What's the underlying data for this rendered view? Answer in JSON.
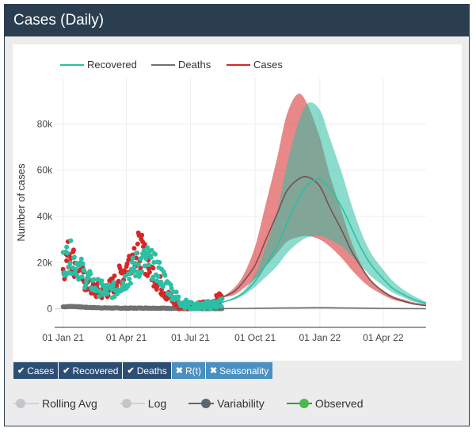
{
  "panel": {
    "title": "Cases (Daily)"
  },
  "colors": {
    "header": "#2b3e50",
    "recovered": "#2bbfa4",
    "deaths": "#707070",
    "cases": "#d62728",
    "button_on": "#2d4e74",
    "button_off": "#4a90c0"
  },
  "toolbar": {
    "buttons": [
      {
        "label": "Cases",
        "active": true,
        "icon": "check-icon"
      },
      {
        "label": "Recovered",
        "active": true,
        "icon": "check-icon"
      },
      {
        "label": "Deaths",
        "active": true,
        "icon": "check-icon"
      },
      {
        "label": "R(t)",
        "active": false,
        "icon": "cross-icon"
      },
      {
        "label": "Seasonality",
        "active": false,
        "icon": "cross-icon"
      }
    ]
  },
  "toggles": [
    {
      "label": "Rolling Avg",
      "on": false
    },
    {
      "label": "Log",
      "on": false
    },
    {
      "label": "Variability",
      "on": true
    },
    {
      "label": "Observed",
      "on": true
    }
  ],
  "chart_data": {
    "type": "line",
    "title": "",
    "xlabel": "",
    "ylabel": "Number of cases",
    "x_range": [
      "2020-12-20",
      "2022-06-01"
    ],
    "ylim": [
      -8000,
      100000
    ],
    "grid": true,
    "legend_position": "top-left",
    "legend": [
      "Recovered",
      "Deaths",
      "Cases"
    ],
    "x_ticks": [
      {
        "date": "2021-01-01",
        "label": "01 Jan 21"
      },
      {
        "date": "2021-04-01",
        "label": "01 Apr 21"
      },
      {
        "date": "2021-07-01",
        "label": "01 Jul 21"
      },
      {
        "date": "2021-10-01",
        "label": "01 Oct 21"
      },
      {
        "date": "2022-01-01",
        "label": "01 Jan 22"
      },
      {
        "date": "2022-04-01",
        "label": "01 Apr 22"
      }
    ],
    "y_ticks": [
      {
        "value": 0,
        "label": "0"
      },
      {
        "value": 20000,
        "label": "20k"
      },
      {
        "value": 40000,
        "label": "40k"
      },
      {
        "value": 60000,
        "label": "60k"
      },
      {
        "value": 80000,
        "label": "80k"
      }
    ],
    "series": [
      {
        "name": "Cases",
        "observed_x": [
          "2021-01-01",
          "2021-01-10",
          "2021-01-20",
          "2021-02-01",
          "2021-02-15",
          "2021-03-01",
          "2021-03-15",
          "2021-04-01",
          "2021-04-10",
          "2021-04-20",
          "2021-05-01",
          "2021-05-15",
          "2021-06-01",
          "2021-06-15",
          "2021-07-01",
          "2021-07-15",
          "2021-08-01",
          "2021-08-15"
        ],
        "observed_y": [
          17000,
          25000,
          18000,
          12000,
          8000,
          7000,
          11000,
          18000,
          24000,
          26000,
          20000,
          12000,
          5000,
          1500,
          500,
          1200,
          2500,
          5000
        ],
        "band_x": [
          "2021-08-15",
          "2021-09-01",
          "2021-09-15",
          "2021-10-01",
          "2021-10-15",
          "2021-11-01",
          "2021-11-15",
          "2021-12-01",
          "2021-12-15",
          "2022-01-01",
          "2022-01-15",
          "2022-02-01",
          "2022-02-15",
          "2022-03-01",
          "2022-03-15",
          "2022-04-01",
          "2022-04-15",
          "2022-05-01",
          "2022-05-15",
          "2022-06-01"
        ],
        "upper": [
          5000,
          9000,
          15000,
          27000,
          44000,
          65000,
          84000,
          93000,
          88000,
          74000,
          58000,
          42000,
          29000,
          19000,
          12000,
          8000,
          5500,
          4000,
          2800,
          2000
        ],
        "lower": [
          5000,
          6000,
          9000,
          13000,
          18000,
          24000,
          29000,
          31000,
          31500,
          30000,
          27000,
          22000,
          17000,
          12500,
          9000,
          6000,
          4000,
          2800,
          1800,
          1200
        ],
        "mid": [
          5000,
          7500,
          12000,
          19000,
          29000,
          41000,
          51000,
          56000,
          57000,
          53000,
          44000,
          34000,
          25000,
          18000,
          12000,
          7500,
          5000,
          3200,
          2100,
          1400
        ]
      },
      {
        "name": "Recovered",
        "observed_x": [
          "2021-01-01",
          "2021-01-10",
          "2021-01-20",
          "2021-02-01",
          "2021-02-15",
          "2021-03-01",
          "2021-03-15",
          "2021-04-01",
          "2021-04-15",
          "2021-05-01",
          "2021-05-15",
          "2021-06-01",
          "2021-06-15",
          "2021-07-01",
          "2021-07-15",
          "2021-08-01",
          "2021-08-15"
        ],
        "observed_y": [
          20000,
          23000,
          20000,
          14000,
          10000,
          8000,
          8000,
          13000,
          19000,
          21000,
          17000,
          9000,
          3500,
          1200,
          1000,
          1800,
          2800
        ],
        "band_x": [
          "2021-08-15",
          "2021-09-01",
          "2021-09-15",
          "2021-10-01",
          "2021-10-15",
          "2021-11-01",
          "2021-11-15",
          "2021-12-01",
          "2021-12-15",
          "2022-01-01",
          "2022-01-15",
          "2022-02-01",
          "2022-02-15",
          "2022-03-01",
          "2022-03-15",
          "2022-04-01",
          "2022-04-15",
          "2022-05-01",
          "2022-05-15",
          "2022-06-01"
        ],
        "upper": [
          2800,
          5000,
          8000,
          15000,
          26000,
          42000,
          62000,
          80000,
          89000,
          86000,
          74000,
          59000,
          45000,
          33000,
          24000,
          17000,
          12000,
          8000,
          5500,
          3000
        ],
        "lower": [
          2800,
          4000,
          6000,
          9500,
          13500,
          18500,
          24000,
          28500,
          31000,
          31500,
          30000,
          27000,
          23000,
          18500,
          14000,
          10000,
          7000,
          4800,
          3000,
          1800
        ],
        "mid": [
          2800,
          4500,
          7000,
          12000,
          18500,
          27000,
          37000,
          47000,
          54000,
          56000,
          52000,
          44000,
          35000,
          26000,
          19000,
          13000,
          8800,
          6000,
          4000,
          2400
        ]
      },
      {
        "name": "Deaths",
        "observed_x": [
          "2021-01-01",
          "2021-01-15",
          "2021-02-01",
          "2021-03-01",
          "2021-04-01",
          "2021-05-01",
          "2021-06-01",
          "2021-07-01",
          "2021-08-01",
          "2021-08-15"
        ],
        "observed_y": [
          900,
          1100,
          700,
          400,
          300,
          350,
          250,
          150,
          100,
          120
        ],
        "band_x": [
          "2021-08-15",
          "2021-10-01",
          "2021-11-01",
          "2021-12-01",
          "2022-01-01",
          "2022-02-01",
          "2022-03-01",
          "2022-04-01",
          "2022-05-01",
          "2022-06-01"
        ],
        "upper": [
          150,
          300,
          450,
          550,
          650,
          550,
          400,
          250,
          150,
          100
        ],
        "lower": [
          100,
          200,
          300,
          350,
          400,
          350,
          280,
          180,
          110,
          70
        ],
        "mid": [
          120,
          250,
          380,
          450,
          520,
          450,
          340,
          210,
          130,
          85
        ]
      }
    ]
  }
}
